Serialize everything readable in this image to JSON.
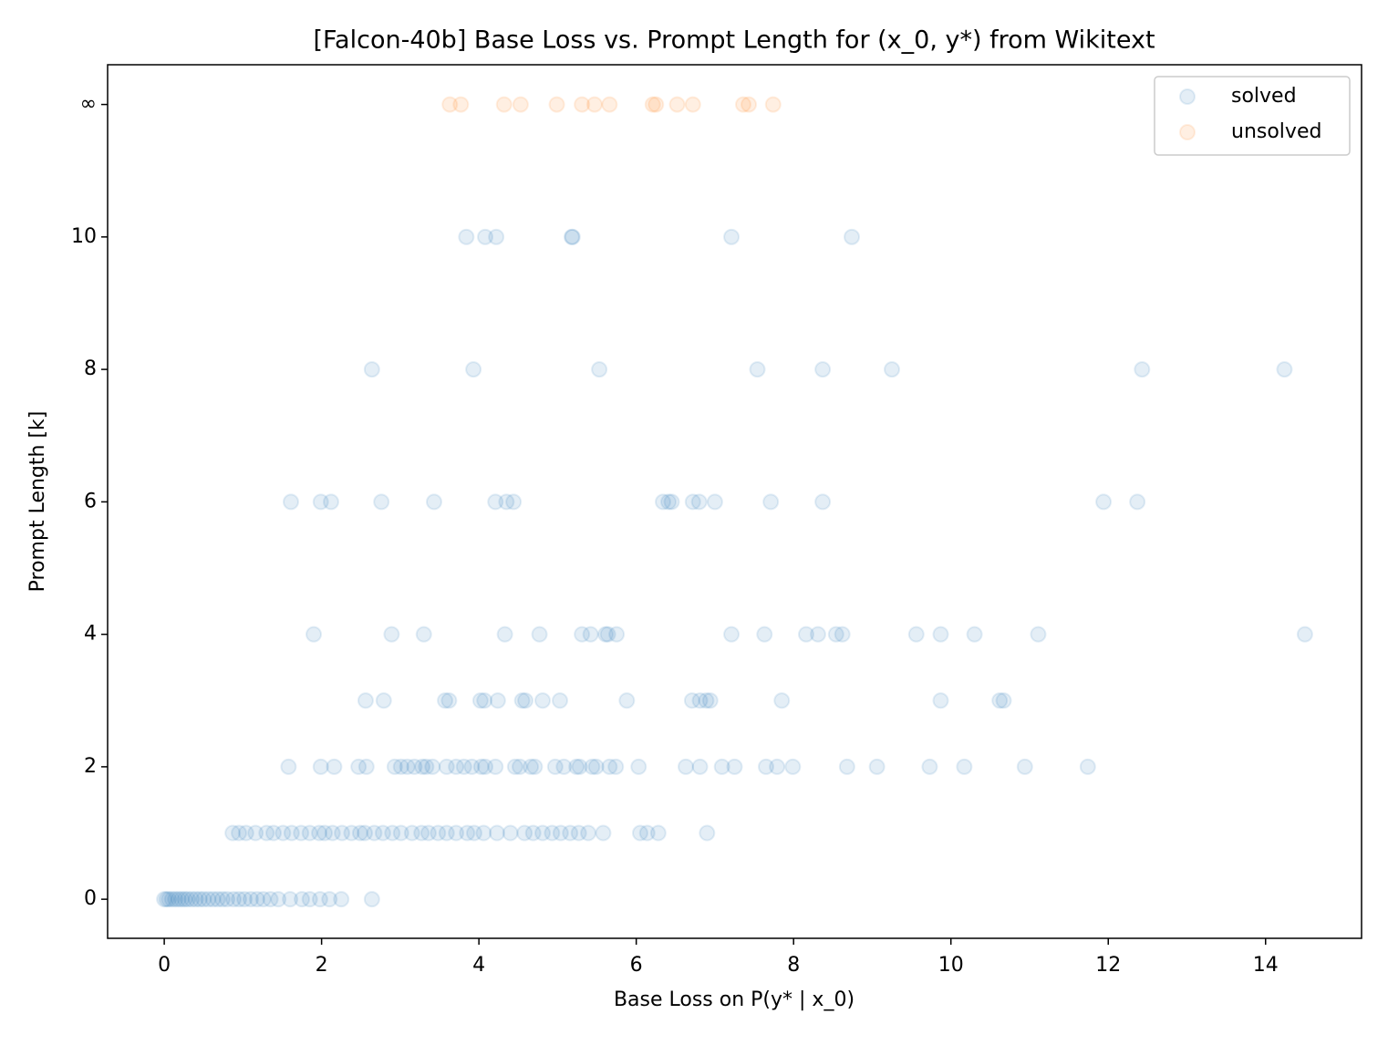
{
  "chart_data": {
    "type": "scatter",
    "title": "[Falcon-40b] Base Loss vs. Prompt Length for (x_0, y*) from Wikitext",
    "xlabel": "Base Loss on P(y* | x_0)",
    "ylabel": "Prompt Length [k]",
    "xlim": [
      -0.72,
      15.22
    ],
    "ylim": [
      -0.59,
      12.6
    ],
    "xticks": [
      0,
      2,
      4,
      6,
      8,
      10,
      12,
      14
    ],
    "yticks": [
      0,
      2,
      4,
      6,
      8,
      10,
      {
        "value": 12,
        "label": "∞"
      }
    ],
    "legend": "upper right",
    "series": [
      {
        "name": "solved",
        "color": "#1f77b4",
        "x": [
          3.84,
          4.08,
          4.22,
          5.18,
          5.19,
          7.21,
          8.74,
          2.64,
          3.93,
          5.53,
          7.54,
          8.37,
          9.25,
          12.43,
          14.24,
          1.61,
          1.99,
          2.12,
          2.76,
          3.43,
          4.21,
          4.35,
          4.44,
          6.34,
          6.41,
          6.45,
          6.72,
          6.8,
          7.0,
          7.71,
          8.37,
          11.94,
          12.37,
          1.9,
          2.89,
          3.3,
          4.33,
          4.77,
          5.31,
          5.42,
          5.61,
          5.64,
          5.75,
          7.21,
          7.63,
          8.16,
          8.31,
          8.54,
          8.62,
          9.56,
          9.87,
          10.3,
          11.11,
          14.5,
          2.56,
          2.79,
          3.57,
          3.62,
          4.02,
          4.07,
          4.24,
          4.55,
          4.59,
          4.81,
          5.03,
          5.88,
          6.71,
          6.81,
          6.89,
          6.94,
          7.85,
          9.87,
          10.62,
          10.67,
          1.58,
          1.99,
          2.16,
          2.47,
          2.57,
          2.93,
          3.01,
          3.09,
          3.18,
          3.28,
          3.33,
          3.41,
          3.59,
          3.71,
          3.81,
          3.91,
          4.03,
          4.08,
          4.21,
          4.46,
          4.52,
          4.66,
          4.71,
          4.97,
          5.08,
          5.24,
          5.28,
          5.44,
          5.49,
          5.66,
          5.74,
          6.03,
          6.63,
          6.81,
          7.09,
          7.25,
          7.65,
          7.79,
          7.99,
          8.68,
          9.06,
          9.73,
          10.17,
          10.94,
          11.74,
          0.87,
          0.95,
          1.04,
          1.16,
          1.3,
          1.39,
          1.51,
          1.62,
          1.74,
          1.85,
          1.97,
          2.04,
          2.14,
          2.26,
          2.38,
          2.49,
          2.55,
          2.67,
          2.78,
          2.9,
          3.01,
          3.15,
          3.27,
          3.36,
          3.48,
          3.59,
          3.71,
          3.85,
          3.94,
          4.06,
          4.23,
          4.4,
          4.58,
          4.69,
          4.81,
          4.93,
          5.04,
          5.16,
          5.27,
          5.39,
          5.58,
          6.05,
          6.14,
          6.28,
          6.9,
          0,
          0.03,
          0.06,
          0.1,
          0.14,
          0.18,
          0.22,
          0.26,
          0.3,
          0.35,
          0.4,
          0.45,
          0.5,
          0.56,
          0.62,
          0.68,
          0.74,
          0.8,
          0.88,
          0.95,
          1.02,
          1.1,
          1.18,
          1.26,
          1.35,
          1.45,
          1.6,
          1.75,
          1.85,
          1.98,
          2.1,
          2.25,
          2.64
        ],
        "values": [
          10,
          10,
          10,
          10,
          10,
          10,
          10,
          8,
          8,
          8,
          8,
          8,
          8,
          8,
          8,
          6,
          6,
          6,
          6,
          6,
          6,
          6,
          6,
          6,
          6,
          6,
          6,
          6,
          6,
          6,
          6,
          6,
          6,
          4,
          4,
          4,
          4,
          4,
          4,
          4,
          4,
          4,
          4,
          4,
          4,
          4,
          4,
          4,
          4,
          4,
          4,
          4,
          4,
          4,
          3,
          3,
          3,
          3,
          3,
          3,
          3,
          3,
          3,
          3,
          3,
          3,
          3,
          3,
          3,
          3,
          3,
          3,
          3,
          3,
          2,
          2,
          2,
          2,
          2,
          2,
          2,
          2,
          2,
          2,
          2,
          2,
          2,
          2,
          2,
          2,
          2,
          2,
          2,
          2,
          2,
          2,
          2,
          2,
          2,
          2,
          2,
          2,
          2,
          2,
          2,
          2,
          2,
          2,
          2,
          2,
          2,
          2,
          2,
          2,
          2,
          2,
          2,
          2,
          2,
          1,
          1,
          1,
          1,
          1,
          1,
          1,
          1,
          1,
          1,
          1,
          1,
          1,
          1,
          1,
          1,
          1,
          1,
          1,
          1,
          1,
          1,
          1,
          1,
          1,
          1,
          1,
          1,
          1,
          1,
          1,
          1,
          1,
          1,
          1,
          1,
          1,
          1,
          1,
          1,
          1,
          1,
          1,
          1,
          1,
          0,
          0,
          0,
          0,
          0,
          0,
          0,
          0,
          0,
          0,
          0,
          0,
          0,
          0,
          0,
          0,
          0,
          0,
          0,
          0,
          0,
          0,
          0,
          0,
          0,
          0,
          0,
          0,
          0,
          0,
          0,
          0,
          0
        ]
      },
      {
        "name": "unsolved",
        "color": "#ff7f0e",
        "x": [
          3.63,
          3.77,
          4.32,
          4.53,
          4.99,
          5.31,
          5.47,
          5.66,
          6.21,
          6.25,
          6.52,
          6.72,
          7.36,
          7.43,
          7.74
        ],
        "values": [
          12,
          12,
          12,
          12,
          12,
          12,
          12,
          12,
          12,
          12,
          12,
          12,
          12,
          12,
          12
        ]
      }
    ]
  }
}
